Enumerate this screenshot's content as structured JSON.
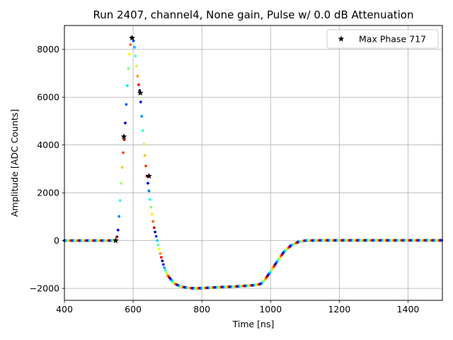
{
  "chart_data": {
    "type": "scatter",
    "title": "Run 2407, channel4, None gain, Pulse w/ 0.0 dB Attenuation",
    "xlabel": "Time [ns]",
    "ylabel": "Amplitude [ADC Counts]",
    "xlim": [
      400,
      1500
    ],
    "ylim": [
      -2500,
      9000
    ],
    "xticks": [
      400,
      600,
      800,
      1000,
      1200,
      1400
    ],
    "yticks": [
      -2000,
      0,
      2000,
      4000,
      6000,
      8000
    ],
    "xtick_labels": [
      "400",
      "600",
      "800",
      "1000",
      "1200",
      "1400"
    ],
    "ytick_labels": [
      "−2000",
      "0",
      "2000",
      "4000",
      "6000",
      "8000"
    ],
    "grid": true,
    "legend_position": "top-right",
    "colormap": "jet",
    "pulse_curve": {
      "x": [
        400,
        540,
        550,
        555,
        560,
        565,
        570,
        575,
        580,
        585,
        590,
        595,
        600,
        605,
        610,
        615,
        620,
        625,
        630,
        635,
        640,
        645,
        650,
        655,
        660,
        670,
        680,
        690,
        700,
        720,
        740,
        760,
        780,
        800,
        850,
        900,
        950,
        970,
        980,
        1000,
        1020,
        1040,
        1060,
        1080,
        1100,
        1150,
        1200,
        1300,
        1400,
        1500
      ],
      "y": [
        0,
        0,
        20,
        250,
        1200,
        2400,
        3500,
        4400,
        5700,
        7000,
        8000,
        8500,
        8450,
        8000,
        7300,
        6600,
        6200,
        5200,
        4200,
        3400,
        2700,
        2200,
        1600,
        1100,
        600,
        0,
        -600,
        -1100,
        -1450,
        -1800,
        -1930,
        -1980,
        -2000,
        -1990,
        -1950,
        -1920,
        -1870,
        -1820,
        -1700,
        -1300,
        -850,
        -450,
        -200,
        -60,
        0,
        10,
        10,
        10,
        10,
        10
      ]
    },
    "series": [
      {
        "name": "Max Phase 717",
        "marker": "star",
        "x": [
          549,
          573,
          597,
          621,
          646
        ],
        "y": [
          0,
          4350,
          8480,
          6180,
          2700
        ]
      }
    ]
  }
}
